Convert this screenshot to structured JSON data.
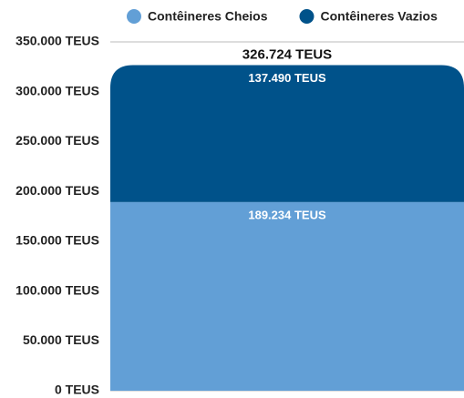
{
  "chart_data": {
    "type": "stacked_bar",
    "categories": [
      null
    ],
    "series": [
      {
        "name": "Contêineres Cheios",
        "color": "#629fd6",
        "values": [
          189234
        ],
        "value_labels": [
          "189.234 TEUS"
        ]
      },
      {
        "name": "Contêineres Vazios",
        "color": "#00528a",
        "values": [
          137490
        ],
        "value_labels": [
          "137.490 TEUS"
        ]
      }
    ],
    "total": {
      "value": 326724,
      "label": "326.724 TEUS"
    },
    "ylim": [
      0,
      350000
    ],
    "yticks": [
      {
        "value": 0,
        "label": "0 TEUS"
      },
      {
        "value": 50000,
        "label": "50.000 TEUS"
      },
      {
        "value": 100000,
        "label": "100.000 TEUS"
      },
      {
        "value": 150000,
        "label": "150.000 TEUS"
      },
      {
        "value": 200000,
        "label": "200.000 TEUS"
      },
      {
        "value": 250000,
        "label": "250.000 TEUS"
      },
      {
        "value": 300000,
        "label": "300.000 TEUS"
      },
      {
        "value": 350000,
        "label": "350.000 TEUS"
      }
    ],
    "grid": true,
    "legend": "top"
  }
}
